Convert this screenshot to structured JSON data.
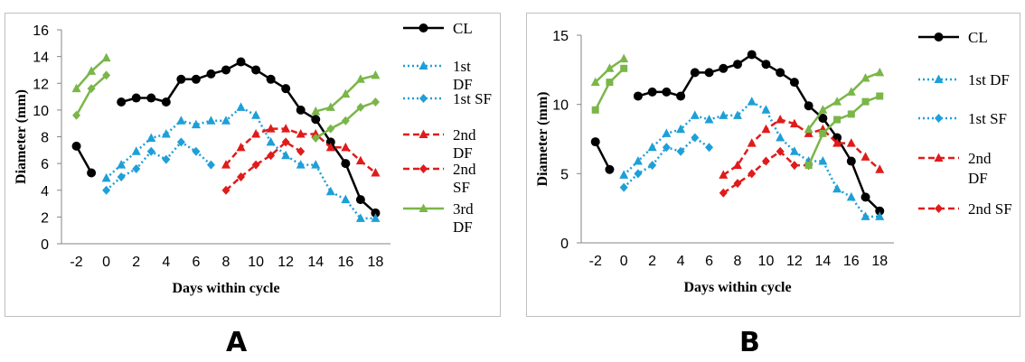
{
  "panel_labels": [
    "A",
    "B"
  ],
  "chart_data": [
    {
      "type": "line",
      "panel": "A",
      "xlabel": "Days within cycle",
      "ylabel": "Diameter (mm)",
      "xlim": [
        -3,
        19
      ],
      "ylim": [
        0,
        16
      ],
      "xticks": [
        -2,
        0,
        2,
        4,
        6,
        8,
        10,
        12,
        14,
        16,
        18
      ],
      "yticks": [
        0,
        2,
        4,
        6,
        8,
        10,
        12,
        14,
        16
      ],
      "grid": false,
      "legend_position": "right",
      "series": [
        {
          "name": "CL",
          "color": "#000000",
          "dash": "solid",
          "marker": "circle",
          "segments": [
            [
              [
                -2,
                7.3
              ],
              [
                -1,
                5.3
              ]
            ],
            [
              [
                1,
                10.6
              ],
              [
                2,
                10.9
              ],
              [
                3,
                10.9
              ],
              [
                4,
                10.6
              ],
              [
                5,
                12.3
              ],
              [
                6,
                12.3
              ],
              [
                7,
                12.7
              ],
              [
                8,
                13.0
              ],
              [
                9,
                13.6
              ],
              [
                10,
                13.0
              ],
              [
                11,
                12.3
              ],
              [
                12,
                11.6
              ],
              [
                13,
                10.0
              ],
              [
                14,
                9.3
              ],
              [
                15,
                7.6
              ],
              [
                16,
                6.0
              ],
              [
                17,
                3.3
              ],
              [
                18,
                2.3
              ]
            ]
          ]
        },
        {
          "name": "1st DF",
          "color": "#1e9fd8",
          "dash": "dotted",
          "marker": "triangle",
          "segments": [
            [
              [
                0,
                4.9
              ],
              [
                1,
                5.9
              ],
              [
                2,
                6.9
              ],
              [
                3,
                7.9
              ],
              [
                4,
                8.2
              ],
              [
                5,
                9.2
              ],
              [
                6,
                8.9
              ],
              [
                7,
                9.2
              ],
              [
                8,
                9.2
              ],
              [
                9,
                10.2
              ],
              [
                10,
                9.6
              ],
              [
                11,
                7.6
              ],
              [
                12,
                6.6
              ],
              [
                13,
                5.9
              ],
              [
                14,
                5.9
              ],
              [
                15,
                3.9
              ],
              [
                16,
                3.3
              ],
              [
                17,
                1.9
              ],
              [
                18,
                1.9
              ]
            ]
          ]
        },
        {
          "name": "1st SF",
          "color": "#1e9fd8",
          "dash": "dotted",
          "marker": "diamond",
          "segments": [
            [
              [
                0,
                4.0
              ],
              [
                1,
                5.0
              ],
              [
                2,
                5.6
              ],
              [
                3,
                6.9
              ],
              [
                4,
                6.3
              ],
              [
                5,
                7.6
              ],
              [
                6,
                6.9
              ],
              [
                7,
                5.9
              ]
            ]
          ]
        },
        {
          "name": "2nd DF",
          "color": "#e01b1b",
          "dash": "dashed",
          "marker": "triangle",
          "segments": [
            [
              [
                8,
                5.9
              ],
              [
                9,
                7.2
              ],
              [
                10,
                8.2
              ],
              [
                11,
                8.6
              ],
              [
                12,
                8.6
              ],
              [
                13,
                8.2
              ],
              [
                14,
                8.2
              ],
              [
                15,
                7.2
              ],
              [
                16,
                7.2
              ],
              [
                17,
                6.2
              ],
              [
                18,
                5.3
              ]
            ]
          ]
        },
        {
          "name": "2nd SF",
          "color": "#e01b1b",
          "dash": "dashed",
          "marker": "diamond",
          "segments": [
            [
              [
                8,
                4.0
              ],
              [
                9,
                5.0
              ],
              [
                10,
                5.9
              ],
              [
                11,
                6.6
              ],
              [
                12,
                7.6
              ],
              [
                13,
                6.9
              ]
            ]
          ]
        },
        {
          "name": "3rd DF",
          "color": "#7ab648",
          "dash": "solid",
          "marker": "triangle",
          "segments": [
            [
              [
                -2,
                11.6
              ],
              [
                -1,
                12.9
              ],
              [
                0,
                13.9
              ]
            ],
            [
              [
                14,
                9.9
              ],
              [
                15,
                10.2
              ],
              [
                16,
                11.2
              ],
              [
                17,
                12.3
              ],
              [
                18,
                12.6
              ]
            ]
          ]
        },
        {
          "name": "",
          "color": "#7ab648",
          "dash": "solid",
          "marker": "diamond",
          "segments": [
            [
              [
                -2,
                9.6
              ],
              [
                -1,
                11.6
              ],
              [
                0,
                12.6
              ]
            ],
            [
              [
                14,
                7.9
              ],
              [
                15,
                8.6
              ],
              [
                16,
                9.2
              ],
              [
                17,
                10.2
              ],
              [
                18,
                10.6
              ]
            ]
          ]
        }
      ],
      "legend": [
        {
          "series": 0,
          "lines": [
            "CL"
          ]
        },
        {
          "series": 1,
          "lines": [
            "1st",
            "DF"
          ]
        },
        {
          "series": 2,
          "lines": [
            "1st SF"
          ]
        },
        {
          "series": 3,
          "lines": [
            "2nd",
            "DF"
          ]
        },
        {
          "series": 4,
          "lines": [
            "2nd",
            "SF"
          ]
        },
        {
          "series": 5,
          "lines": [
            "3rd",
            "DF"
          ]
        }
      ]
    },
    {
      "type": "line",
      "panel": "B",
      "xlabel": "Days within cycle",
      "ylabel": "Diameter (mm)",
      "xlim": [
        -3,
        19
      ],
      "ylim": [
        0,
        15
      ],
      "xticks": [
        -2,
        0,
        2,
        4,
        6,
        8,
        10,
        12,
        14,
        16,
        18
      ],
      "yticks": [
        0,
        5,
        10,
        15
      ],
      "grid": false,
      "legend_position": "right",
      "series": [
        {
          "name": "CL",
          "color": "#000000",
          "dash": "solid",
          "marker": "circle",
          "segments": [
            [
              [
                -2,
                7.3
              ],
              [
                -1,
                5.3
              ]
            ],
            [
              [
                1,
                10.6
              ],
              [
                2,
                10.9
              ],
              [
                3,
                10.9
              ],
              [
                4,
                10.6
              ],
              [
                5,
                12.3
              ],
              [
                6,
                12.3
              ],
              [
                7,
                12.6
              ],
              [
                8,
                12.9
              ],
              [
                9,
                13.6
              ],
              [
                10,
                12.9
              ],
              [
                11,
                12.3
              ],
              [
                12,
                11.6
              ],
              [
                13,
                9.9
              ],
              [
                14,
                9.0
              ],
              [
                15,
                7.6
              ],
              [
                16,
                5.9
              ],
              [
                17,
                3.3
              ],
              [
                18,
                2.3
              ]
            ]
          ]
        },
        {
          "name": "1st DF",
          "color": "#1e9fd8",
          "dash": "dotted",
          "marker": "triangle",
          "segments": [
            [
              [
                0,
                4.9
              ],
              [
                1,
                5.9
              ],
              [
                2,
                6.9
              ],
              [
                3,
                7.9
              ],
              [
                4,
                8.2
              ],
              [
                5,
                9.2
              ],
              [
                6,
                8.9
              ],
              [
                7,
                9.2
              ],
              [
                8,
                9.2
              ],
              [
                9,
                10.2
              ],
              [
                10,
                9.6
              ],
              [
                11,
                7.6
              ],
              [
                12,
                6.6
              ],
              [
                13,
                5.9
              ],
              [
                14,
                5.9
              ],
              [
                15,
                3.9
              ],
              [
                16,
                3.3
              ],
              [
                17,
                1.9
              ],
              [
                18,
                1.9
              ]
            ]
          ]
        },
        {
          "name": "1st SF",
          "color": "#1e9fd8",
          "dash": "dotted",
          "marker": "diamond",
          "segments": [
            [
              [
                0,
                4.0
              ],
              [
                1,
                5.0
              ],
              [
                2,
                5.6
              ],
              [
                3,
                6.9
              ],
              [
                4,
                6.6
              ],
              [
                5,
                7.6
              ],
              [
                6,
                6.9
              ]
            ]
          ]
        },
        {
          "name": "2nd DF",
          "color": "#e01b1b",
          "dash": "dashed",
          "marker": "triangle",
          "segments": [
            [
              [
                7,
                4.9
              ],
              [
                8,
                5.6
              ],
              [
                9,
                7.2
              ],
              [
                10,
                8.2
              ],
              [
                11,
                8.9
              ],
              [
                12,
                8.6
              ],
              [
                13,
                7.9
              ],
              [
                14,
                8.2
              ],
              [
                15,
                7.2
              ],
              [
                16,
                7.2
              ],
              [
                17,
                6.2
              ],
              [
                18,
                5.3
              ]
            ]
          ]
        },
        {
          "name": "2nd SF",
          "color": "#e01b1b",
          "dash": "dashed",
          "marker": "diamond",
          "segments": [
            [
              [
                7,
                3.6
              ],
              [
                8,
                4.3
              ],
              [
                9,
                5.0
              ],
              [
                10,
                5.9
              ],
              [
                11,
                6.6
              ],
              [
                12,
                5.6
              ],
              [
                13,
                5.6
              ]
            ]
          ]
        },
        {
          "name": "",
          "color": "#7ab648",
          "dash": "solid",
          "marker": "triangle",
          "segments": [
            [
              [
                -2,
                11.6
              ],
              [
                -1,
                12.6
              ],
              [
                0,
                13.3
              ]
            ],
            [
              [
                13,
                8.2
              ],
              [
                14,
                9.6
              ],
              [
                15,
                10.2
              ],
              [
                16,
                10.9
              ],
              [
                17,
                11.9
              ],
              [
                18,
                12.3
              ]
            ]
          ]
        },
        {
          "name": "",
          "color": "#7ab648",
          "dash": "solid",
          "marker": "square",
          "segments": [
            [
              [
                -2,
                9.6
              ],
              [
                -1,
                11.6
              ],
              [
                0,
                12.6
              ]
            ],
            [
              [
                13,
                5.6
              ],
              [
                14,
                7.9
              ],
              [
                15,
                8.9
              ],
              [
                16,
                9.3
              ],
              [
                17,
                10.2
              ],
              [
                18,
                10.6
              ]
            ]
          ]
        }
      ],
      "legend": [
        {
          "series": 0,
          "lines": [
            "CL"
          ]
        },
        {
          "series": 1,
          "lines": [
            "1st DF"
          ]
        },
        {
          "series": 2,
          "lines": [
            "1st SF"
          ]
        },
        {
          "series": 3,
          "lines": [
            "2nd",
            "DF"
          ]
        },
        {
          "series": 4,
          "lines": [
            "2nd SF"
          ]
        }
      ]
    }
  ]
}
